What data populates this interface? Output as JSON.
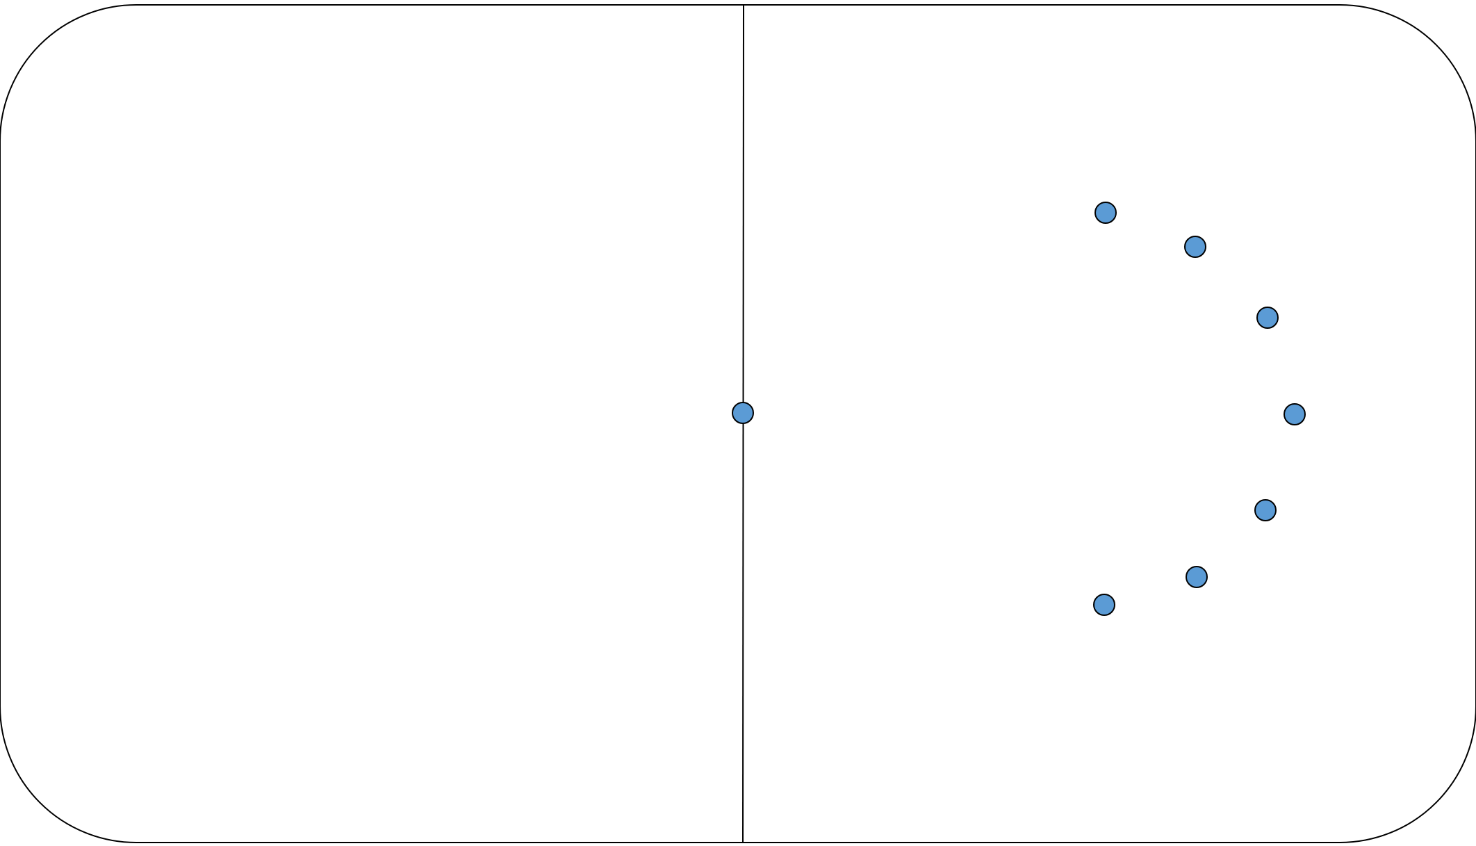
{
  "diagram": {
    "shape": "rounded-rectangle-field",
    "colors": {
      "background": "#ffffff",
      "outline": "#000000",
      "marker_fill": "#5b9bd5",
      "marker_stroke": "#000000"
    },
    "center_marker_count": 1,
    "arc_marker_count": 7
  }
}
